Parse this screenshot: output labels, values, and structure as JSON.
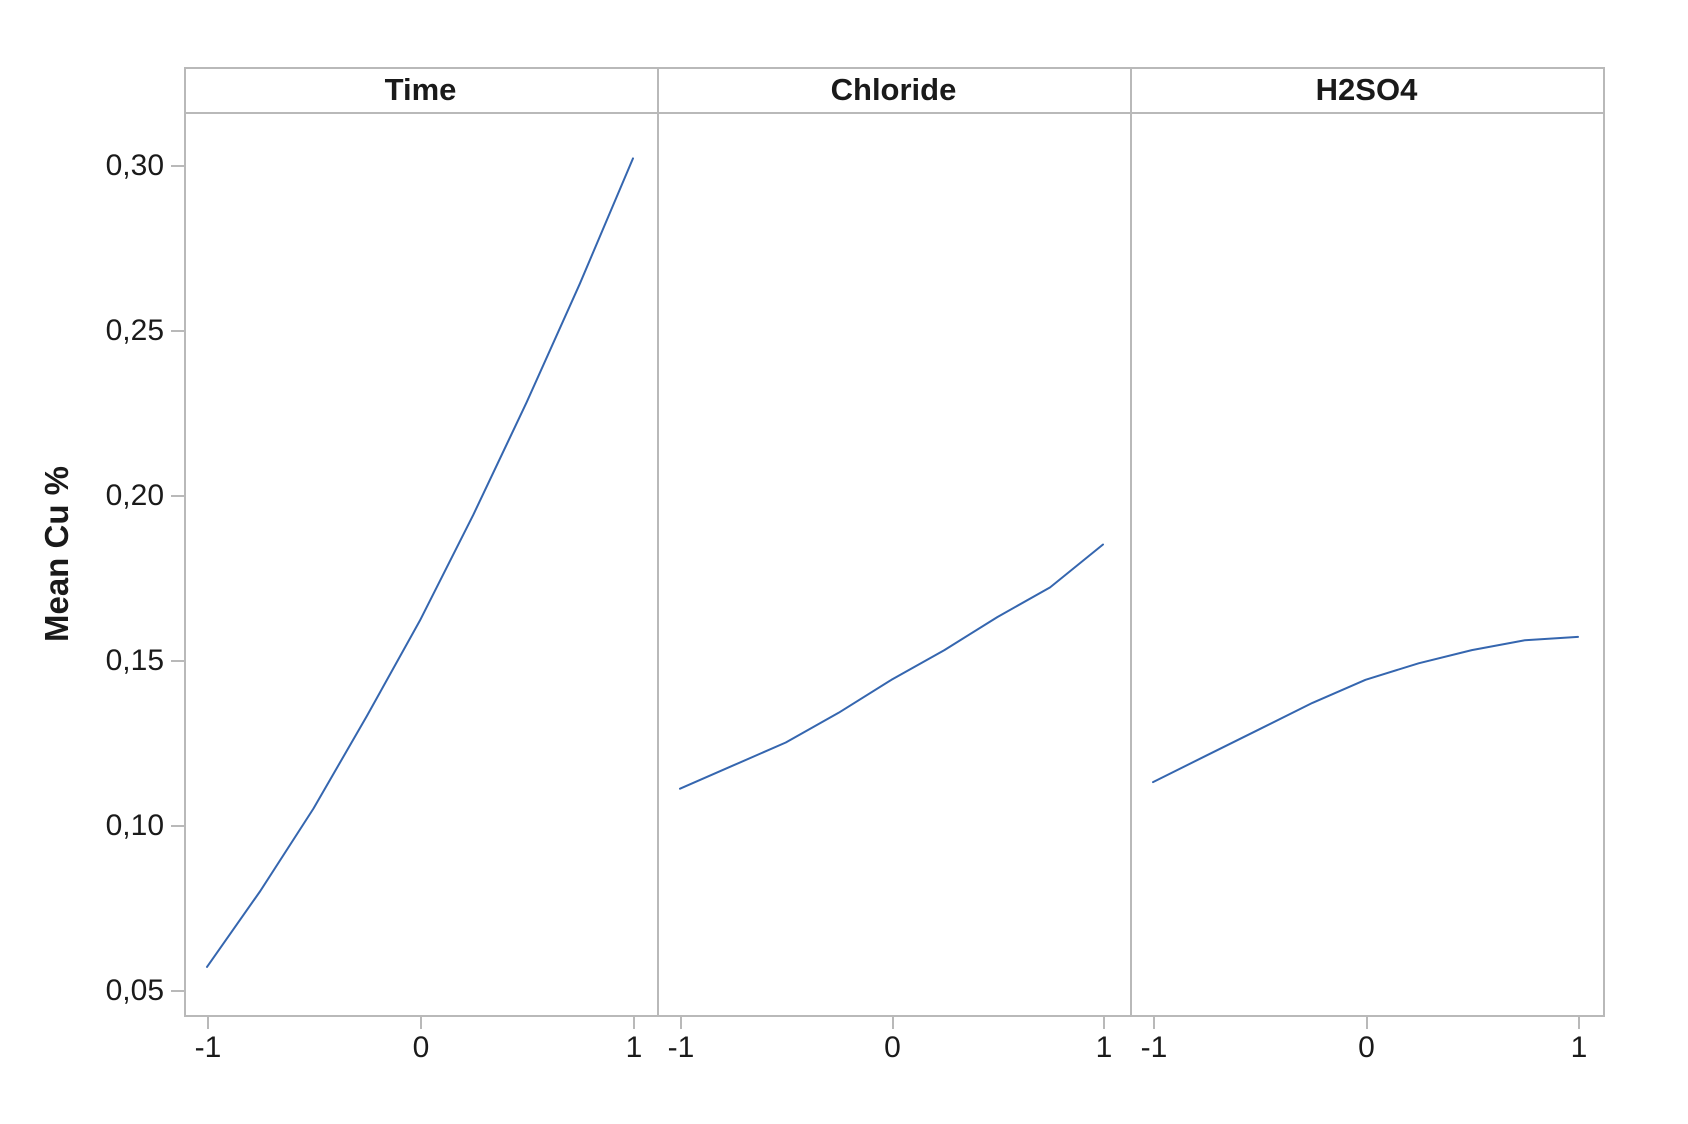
{
  "chart_data": {
    "type": "line",
    "title": "",
    "ylabel": "Mean Cu %",
    "decimal_separator": ",",
    "grid": false,
    "legend": "none",
    "ylim": [
      0.042,
      0.316
    ],
    "y_ticks": [
      {
        "value": 0.3,
        "label": "0,30"
      },
      {
        "value": 0.25,
        "label": "0,25"
      },
      {
        "value": 0.2,
        "label": "0,20"
      },
      {
        "value": 0.15,
        "label": "0,15"
      },
      {
        "value": 0.1,
        "label": "0,10"
      },
      {
        "value": 0.05,
        "label": "0,05"
      }
    ],
    "x_ticks": [
      {
        "value": -1,
        "label": "-1"
      },
      {
        "value": 0,
        "label": "0"
      },
      {
        "value": 1,
        "label": "1"
      }
    ],
    "x": [
      -1,
      -0.75,
      -0.5,
      -0.25,
      0,
      0.25,
      0.5,
      0.75,
      1
    ],
    "panels": [
      {
        "label": "Time",
        "values": [
          0.057,
          0.08,
          0.105,
          0.133,
          0.162,
          0.194,
          0.228,
          0.264,
          0.302
        ]
      },
      {
        "label": "Chloride",
        "values": [
          0.111,
          0.118,
          0.125,
          0.134,
          0.144,
          0.153,
          0.163,
          0.172,
          0.185
        ]
      },
      {
        "label": "H2SO4",
        "values": [
          0.113,
          0.121,
          0.129,
          0.137,
          0.144,
          0.149,
          0.153,
          0.156,
          0.157
        ]
      }
    ],
    "colors": {
      "line": "#3566af",
      "frame": "#b9b9b9",
      "text": "#1a1a1a"
    }
  }
}
